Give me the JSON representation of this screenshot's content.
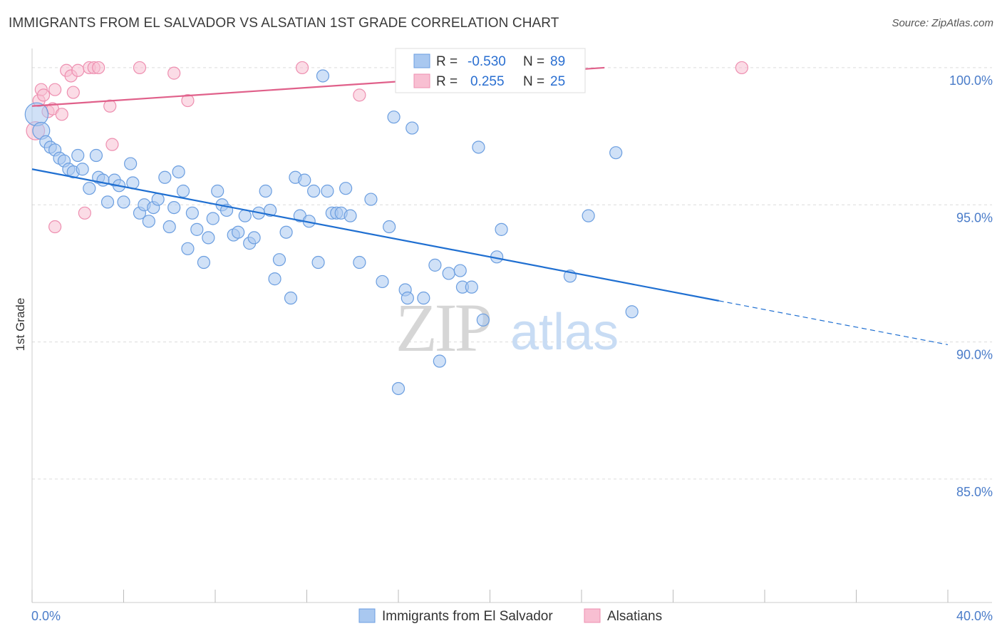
{
  "title": "IMMIGRANTS FROM EL SALVADOR VS ALSATIAN 1ST GRADE CORRELATION CHART",
  "source": "Source: ZipAtlas.com",
  "watermark": {
    "zip": "ZIP",
    "atlas": "atlas"
  },
  "colors": {
    "blue_fill": "#a9c8f0",
    "blue_stroke": "#6b9ee0",
    "blue_line": "#1f6fd1",
    "pink_fill": "#f8bfd2",
    "pink_stroke": "#ee8fb0",
    "pink_line": "#e0608a",
    "grid": "#dcdcdc",
    "axis_text": "#4a7cc9"
  },
  "legend": {
    "blue": {
      "r_label": "R = ",
      "r_value": "-0.530",
      "n_label": "N = ",
      "n_value": "89"
    },
    "pink": {
      "r_label": "R = ",
      "r_value": "0.255",
      "n_label": "N = ",
      "n_value": "25"
    }
  },
  "chart_data": {
    "type": "scatter",
    "xlabel": "",
    "ylabel": "1st Grade",
    "xlim": [
      0,
      40
    ],
    "ylim": [
      80.5,
      100.7
    ],
    "x_tick_labels": [
      "0.0%",
      "40.0%"
    ],
    "y_ticks": [
      {
        "value": 100,
        "label": "100.0%"
      },
      {
        "value": 95,
        "label": "95.0%"
      },
      {
        "value": 90,
        "label": "90.0%"
      },
      {
        "value": 85,
        "label": "85.0%"
      }
    ],
    "legend_position": "top-center",
    "series": [
      {
        "name": "Immigrants from El Salvador",
        "color": "blue",
        "trend": {
          "x_start": 0,
          "y_start": 96.3,
          "x_solid_end": 30,
          "y_solid_end": 91.5,
          "x_end": 40,
          "y_end": 89.9
        },
        "points": [
          [
            0.2,
            98.3,
            1.9
          ],
          [
            0.4,
            97.7,
            1.4
          ],
          [
            0.6,
            97.3,
            1
          ],
          [
            0.8,
            97.1,
            1
          ],
          [
            1.0,
            97.0,
            1
          ],
          [
            1.2,
            96.7,
            1
          ],
          [
            1.4,
            96.6,
            1
          ],
          [
            1.6,
            96.3,
            1
          ],
          [
            1.8,
            96.2,
            1
          ],
          [
            2.0,
            96.8,
            1
          ],
          [
            2.2,
            96.3,
            1
          ],
          [
            2.5,
            95.6,
            1
          ],
          [
            2.8,
            96.8,
            1
          ],
          [
            2.9,
            96.0,
            1
          ],
          [
            3.1,
            95.9,
            1
          ],
          [
            3.3,
            95.1,
            1
          ],
          [
            3.6,
            95.9,
            1
          ],
          [
            3.8,
            95.7,
            1
          ],
          [
            4.0,
            95.1,
            1
          ],
          [
            4.3,
            96.5,
            1
          ],
          [
            4.4,
            95.8,
            1
          ],
          [
            4.7,
            94.7,
            1
          ],
          [
            4.9,
            95.0,
            1
          ],
          [
            5.1,
            94.4,
            1
          ],
          [
            5.3,
            94.9,
            1
          ],
          [
            5.5,
            95.2,
            1
          ],
          [
            5.8,
            96.0,
            1
          ],
          [
            6.0,
            94.2,
            1
          ],
          [
            6.2,
            94.9,
            1
          ],
          [
            6.4,
            96.2,
            1
          ],
          [
            6.6,
            95.5,
            1
          ],
          [
            6.8,
            93.4,
            1
          ],
          [
            7.0,
            94.7,
            1
          ],
          [
            7.2,
            94.1,
            1
          ],
          [
            7.5,
            92.9,
            1
          ],
          [
            7.7,
            93.8,
            1
          ],
          [
            7.9,
            94.5,
            1
          ],
          [
            8.1,
            95.5,
            1
          ],
          [
            8.3,
            95.0,
            1
          ],
          [
            8.5,
            94.8,
            1
          ],
          [
            8.8,
            93.9,
            1
          ],
          [
            9.0,
            94.0,
            1
          ],
          [
            9.3,
            94.6,
            1
          ],
          [
            9.5,
            93.6,
            1
          ],
          [
            9.7,
            93.8,
            1
          ],
          [
            9.9,
            94.7,
            1
          ],
          [
            10.2,
            95.5,
            1
          ],
          [
            10.4,
            94.8,
            1
          ],
          [
            10.6,
            92.3,
            1
          ],
          [
            10.8,
            93.0,
            1
          ],
          [
            11.1,
            94.0,
            1
          ],
          [
            11.3,
            91.6,
            1
          ],
          [
            11.5,
            96.0,
            1
          ],
          [
            11.7,
            94.6,
            1
          ],
          [
            11.9,
            95.9,
            1
          ],
          [
            12.1,
            94.4,
            1
          ],
          [
            12.3,
            95.5,
            1
          ],
          [
            12.5,
            92.9,
            1
          ],
          [
            12.7,
            99.7,
            1
          ],
          [
            12.9,
            95.5,
            1
          ],
          [
            13.1,
            94.7,
            1
          ],
          [
            13.3,
            94.7,
            1
          ],
          [
            13.5,
            94.7,
            1
          ],
          [
            13.7,
            95.6,
            1
          ],
          [
            13.9,
            94.6,
            1
          ],
          [
            14.3,
            92.9,
            1
          ],
          [
            14.8,
            95.2,
            1
          ],
          [
            15.3,
            92.2,
            1
          ],
          [
            15.6,
            94.2,
            1
          ],
          [
            15.8,
            98.2,
            1
          ],
          [
            16.0,
            88.3,
            1
          ],
          [
            16.3,
            91.9,
            1
          ],
          [
            16.4,
            91.6,
            1
          ],
          [
            16.6,
            97.8,
            1
          ],
          [
            17.1,
            91.6,
            1
          ],
          [
            17.6,
            92.8,
            1
          ],
          [
            17.8,
            89.3,
            1
          ],
          [
            18.2,
            92.5,
            1
          ],
          [
            18.7,
            92.6,
            1
          ],
          [
            18.8,
            92.0,
            1
          ],
          [
            19.2,
            92.0,
            1
          ],
          [
            19.5,
            97.1,
            1
          ],
          [
            19.7,
            90.8,
            1
          ],
          [
            20.3,
            93.1,
            1
          ],
          [
            20.5,
            94.1,
            1
          ],
          [
            23.5,
            92.4,
            1
          ],
          [
            24.3,
            94.6,
            1
          ],
          [
            25.5,
            96.9,
            1
          ],
          [
            26.2,
            91.1,
            1
          ]
        ]
      },
      {
        "name": "Alsatians",
        "color": "pink",
        "trend": {
          "x_start": 0,
          "y_start": 98.6,
          "x_end": 25,
          "y_end": 100.0
        },
        "points": [
          [
            0.15,
            97.7,
            1.5
          ],
          [
            0.3,
            98.8,
            1
          ],
          [
            0.4,
            99.2,
            1
          ],
          [
            0.5,
            99.0,
            1
          ],
          [
            0.7,
            98.4,
            1
          ],
          [
            0.9,
            98.5,
            1
          ],
          [
            1.0,
            99.2,
            1
          ],
          [
            1.3,
            98.3,
            1
          ],
          [
            1.5,
            99.9,
            1
          ],
          [
            1.7,
            99.7,
            1
          ],
          [
            1.8,
            99.1,
            1
          ],
          [
            2.0,
            99.9,
            1
          ],
          [
            2.3,
            94.7,
            1
          ],
          [
            2.5,
            100.0,
            1
          ],
          [
            2.7,
            100.0,
            1
          ],
          [
            2.9,
            100.0,
            1
          ],
          [
            3.4,
            98.6,
            1
          ],
          [
            3.5,
            97.2,
            1
          ],
          [
            1.0,
            94.2,
            1
          ],
          [
            4.7,
            100.0,
            1
          ],
          [
            6.2,
            99.8,
            1
          ],
          [
            6.8,
            98.8,
            1
          ],
          [
            11.8,
            100.0,
            1
          ],
          [
            14.3,
            99.0,
            1
          ],
          [
            31.0,
            100.0,
            1
          ]
        ]
      }
    ]
  }
}
